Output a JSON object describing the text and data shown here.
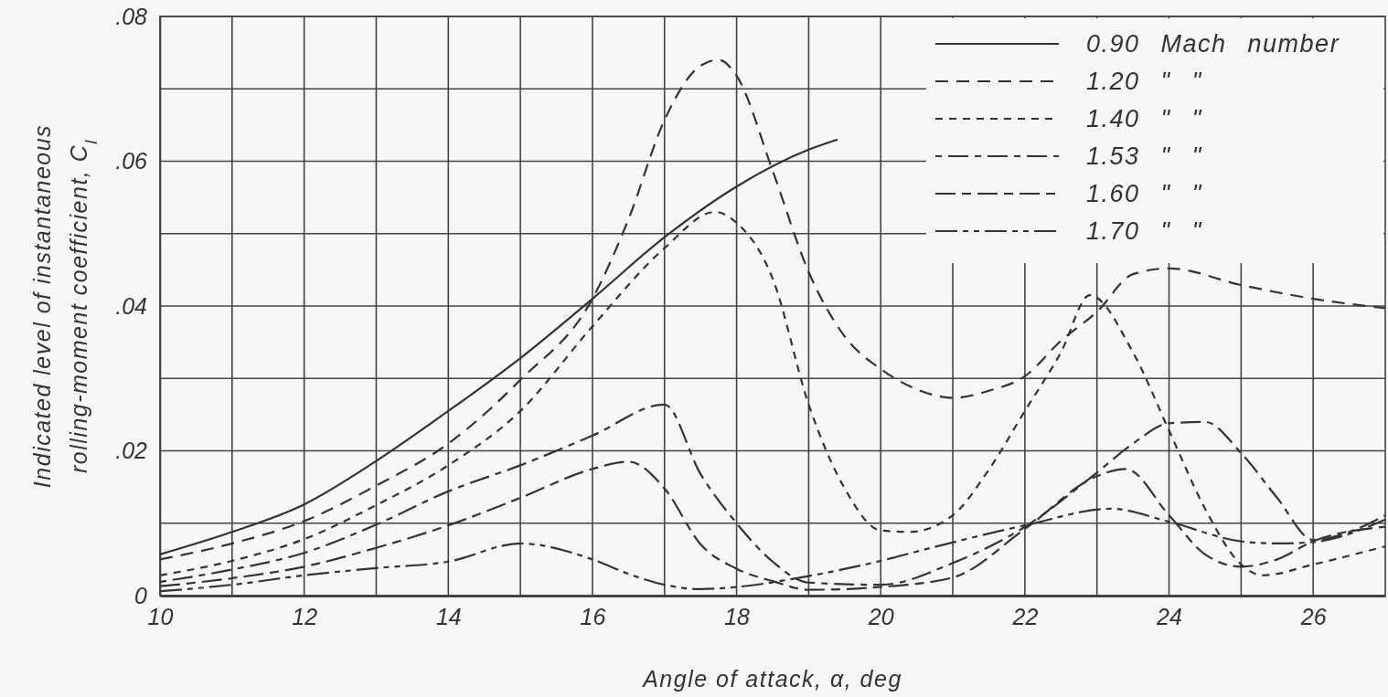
{
  "chart_data": {
    "type": "line",
    "xlabel": "Angle of attack, α, deg",
    "ylabel": "Indicated level of instantaneous rolling-moment coefficient, C$_{l}$",
    "xlim": [
      10,
      27
    ],
    "xticks": [
      10,
      {
        "value": 11,
        "label": null
      },
      12,
      {
        "value": 13,
        "label": null
      },
      14,
      {
        "value": 15,
        "label": null
      },
      16,
      {
        "value": 17,
        "label": null
      },
      18,
      {
        "value": 19,
        "label": null
      },
      20,
      {
        "value": 21,
        "label": null
      },
      22,
      {
        "value": 23,
        "label": null
      },
      24,
      {
        "value": 25,
        "label": null
      },
      26
    ],
    "ylim": [
      0,
      0.08
    ],
    "yticks": [
      0,
      {
        "value": 0.01,
        "label": null
      },
      {
        "value": 0.02,
        "label": ".02"
      },
      {
        "value": 0.03,
        "label": null
      },
      {
        "value": 0.04,
        "label": ".04"
      },
      {
        "value": 0.05,
        "label": null
      },
      {
        "value": 0.06,
        "label": ".06"
      },
      {
        "value": 0.07,
        "label": null
      },
      {
        "value": 0.08,
        "label": ".08"
      }
    ],
    "grid": true,
    "legend": "top right",
    "series": [
      {
        "name": "0.90 Mach number",
        "color": "#333333",
        "line_style": "solid",
        "x": [
          10,
          11,
          12,
          13,
          14,
          15,
          16,
          17,
          18,
          19,
          19.4
        ],
        "values": [
          0.0057,
          0.0088,
          0.0126,
          0.0186,
          0.0255,
          0.0328,
          0.041,
          0.0495,
          0.0565,
          0.0616,
          0.063
        ]
      },
      {
        "name": "1.20 \" \"",
        "color": "#333333",
        "line_style": "dashed",
        "x": [
          10,
          11,
          12,
          13,
          14,
          15,
          16,
          16.5,
          17,
          17.5,
          17.75,
          18,
          18.5,
          19,
          19.5,
          20,
          20.5,
          21,
          21.5,
          22,
          22.5,
          23,
          23.5,
          24,
          25,
          26,
          27
        ],
        "values": [
          0.005,
          0.0072,
          0.0103,
          0.0152,
          0.021,
          0.0298,
          0.041,
          0.052,
          0.0657,
          0.0732,
          0.074,
          0.0718,
          0.0587,
          0.0447,
          0.0358,
          0.0313,
          0.0285,
          0.0273,
          0.0283,
          0.0303,
          0.0352,
          0.0392,
          0.0444,
          0.0452,
          0.0429,
          0.041,
          0.0397
        ]
      },
      {
        "name": "1.40 \" \"",
        "color": "#333333",
        "line_style": "dashed",
        "x": [
          10,
          11,
          12,
          13,
          14,
          15,
          16,
          17,
          17.7,
          18,
          18.5,
          19,
          19.5,
          20,
          20.4,
          21,
          21.5,
          22,
          22.5,
          22.9,
          23.5,
          24,
          24.5,
          25,
          25.3,
          26,
          27
        ],
        "values": [
          0.0028,
          0.0048,
          0.0078,
          0.0125,
          0.018,
          0.0255,
          0.0372,
          0.048,
          0.053,
          0.0515,
          0.0438,
          0.0264,
          0.0148,
          0.009,
          0.0088,
          0.0111,
          0.0174,
          0.0255,
          0.0336,
          0.0415,
          0.0336,
          0.0228,
          0.012,
          0.0043,
          0.0028,
          0.0043,
          0.0068
        ]
      },
      {
        "name": "1.53 \" \"",
        "color": "#333333",
        "line_style": "dashed",
        "x": [
          10,
          11,
          12,
          13,
          14,
          15,
          16,
          17,
          17.5,
          18,
          18.5,
          19,
          20,
          21,
          22,
          23,
          23.5,
          24,
          24.5,
          25,
          25.5,
          26,
          26.5,
          27
        ],
        "values": [
          0.0019,
          0.0036,
          0.0059,
          0.0098,
          0.0144,
          0.018,
          0.0221,
          0.0264,
          0.0168,
          0.01,
          0.0047,
          0.0018,
          0.0015,
          0.0045,
          0.0095,
          0.017,
          0.021,
          0.0238,
          0.024,
          0.0197,
          0.0135,
          0.0077,
          0.0088,
          0.0111
        ]
      },
      {
        "name": "1.60 \" \"",
        "color": "#333333",
        "line_style": "dashed",
        "x": [
          10,
          11,
          12,
          13,
          14,
          15,
          16,
          16.5,
          17,
          17.5,
          18,
          18.5,
          19,
          20,
          21,
          22,
          23,
          23.4,
          24,
          24.5,
          25,
          25.5,
          26,
          27
        ],
        "values": [
          0.0013,
          0.0024,
          0.004,
          0.0066,
          0.0097,
          0.0135,
          0.0175,
          0.0185,
          0.0148,
          0.0071,
          0.0037,
          0.002,
          0.0008,
          0.0012,
          0.0025,
          0.0092,
          0.0165,
          0.0175,
          0.0111,
          0.0057,
          0.004,
          0.005,
          0.0075,
          0.0095
        ]
      },
      {
        "name": "1.70 \" \"",
        "color": "#333333",
        "line_style": "dashed",
        "x": [
          10,
          11,
          12,
          13,
          14,
          15,
          16,
          16.5,
          17,
          17.5,
          18,
          19,
          20,
          20.7,
          22,
          23.2,
          24,
          25,
          25.5,
          26,
          27
        ],
        "values": [
          0.0006,
          0.0015,
          0.0028,
          0.0038,
          0.0047,
          0.0072,
          0.005,
          0.003,
          0.0015,
          0.0009,
          0.0012,
          0.0027,
          0.0048,
          0.0066,
          0.0097,
          0.012,
          0.0102,
          0.0075,
          0.0072,
          0.0074,
          0.0105
        ]
      }
    ]
  }
}
